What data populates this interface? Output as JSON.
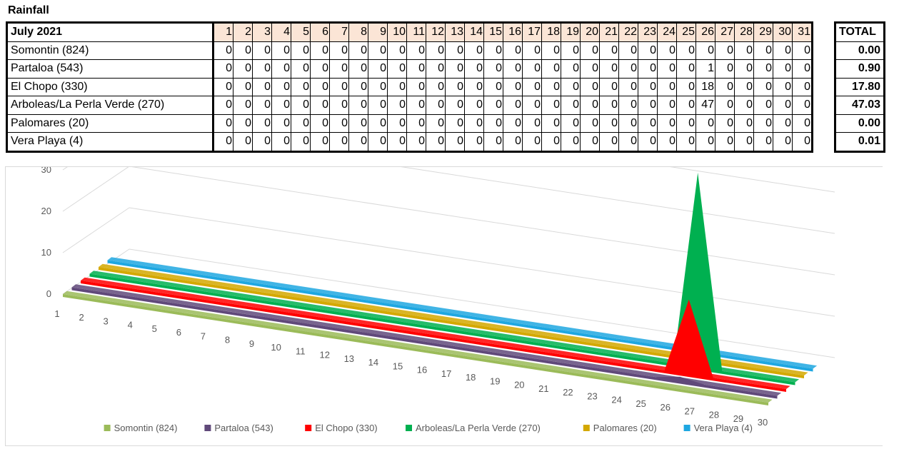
{
  "title": "Rainfall",
  "table": {
    "month_label": "July 2021",
    "days": [
      "1",
      "2",
      "3",
      "4",
      "5",
      "6",
      "7",
      "8",
      "9",
      "10",
      "11",
      "12",
      "13",
      "14",
      "15",
      "16",
      "17",
      "18",
      "19",
      "20",
      "21",
      "22",
      "23",
      "24",
      "25",
      "26",
      "27",
      "28",
      "29",
      "30",
      "31"
    ],
    "total_label": "TOTAL",
    "rows": [
      {
        "name": "Somontin (824)",
        "values": [
          "0",
          "0",
          "0",
          "0",
          "0",
          "0",
          "0",
          "0",
          "0",
          "0",
          "0",
          "0",
          "0",
          "0",
          "0",
          "0",
          "0",
          "0",
          "0",
          "0",
          "0",
          "0",
          "0",
          "0",
          "0",
          "0",
          "0",
          "0",
          "0",
          "0",
          "0"
        ],
        "total": "0.00"
      },
      {
        "name": "Partaloa (543)",
        "values": [
          "0",
          "0",
          "0",
          "0",
          "0",
          "0",
          "0",
          "0",
          "0",
          "0",
          "0",
          "0",
          "0",
          "0",
          "0",
          "0",
          "0",
          "0",
          "0",
          "0",
          "0",
          "0",
          "0",
          "0",
          "0",
          "1",
          "0",
          "0",
          "0",
          "0",
          "0"
        ],
        "total": "0.90"
      },
      {
        "name": "El Chopo (330)",
        "values": [
          "0",
          "0",
          "0",
          "0",
          "0",
          "0",
          "0",
          "0",
          "0",
          "0",
          "0",
          "0",
          "0",
          "0",
          "0",
          "0",
          "0",
          "0",
          "0",
          "0",
          "0",
          "0",
          "0",
          "0",
          "0",
          "18",
          "0",
          "0",
          "0",
          "0",
          "0"
        ],
        "total": "17.80"
      },
      {
        "name": "Arboleas/La Perla Verde (270)",
        "values": [
          "0",
          "0",
          "0",
          "0",
          "0",
          "0",
          "0",
          "0",
          "0",
          "0",
          "0",
          "0",
          "0",
          "0",
          "0",
          "0",
          "0",
          "0",
          "0",
          "0",
          "0",
          "0",
          "0",
          "0",
          "0",
          "47",
          "0",
          "0",
          "0",
          "0",
          "0"
        ],
        "total": "47.03"
      },
      {
        "name": "Palomares (20)",
        "values": [
          "0",
          "0",
          "0",
          "0",
          "0",
          "0",
          "0",
          "0",
          "0",
          "0",
          "0",
          "0",
          "0",
          "0",
          "0",
          "0",
          "0",
          "0",
          "0",
          "0",
          "0",
          "0",
          "0",
          "0",
          "0",
          "0",
          "0",
          "0",
          "0",
          "0",
          "0"
        ],
        "total": "0.00"
      },
      {
        "name": "Vera Playa (4)",
        "values": [
          "0",
          "0",
          "0",
          "0",
          "0",
          "0",
          "0",
          "0",
          "0",
          "0",
          "0",
          "0",
          "0",
          "0",
          "0",
          "0",
          "0",
          "0",
          "0",
          "0",
          "0",
          "0",
          "0",
          "0",
          "0",
          "0",
          "0",
          "0",
          "0",
          "0",
          "0"
        ],
        "total": "0.01"
      }
    ]
  },
  "chart_data": {
    "type": "area",
    "title": "",
    "x": [
      1,
      2,
      3,
      4,
      5,
      6,
      7,
      8,
      9,
      10,
      11,
      12,
      13,
      14,
      15,
      16,
      17,
      18,
      19,
      20,
      21,
      22,
      23,
      24,
      25,
      26,
      27,
      28,
      29,
      30
    ],
    "ylim": [
      0,
      50
    ],
    "yticks": [
      0,
      10,
      20,
      30,
      40,
      50
    ],
    "grid": true,
    "legend_position": "bottom",
    "series": [
      {
        "name": "Somontin (824)",
        "color": "#9bbb59",
        "values": [
          0,
          0,
          0,
          0,
          0,
          0,
          0,
          0,
          0,
          0,
          0,
          0,
          0,
          0,
          0,
          0,
          0,
          0,
          0,
          0,
          0,
          0,
          0,
          0,
          0,
          0,
          0,
          0,
          0,
          0
        ]
      },
      {
        "name": "Partaloa (543)",
        "color": "#60497a",
        "values": [
          0,
          0,
          0,
          0,
          0,
          0,
          0,
          0,
          0,
          0,
          0,
          0,
          0,
          0,
          0,
          0,
          0,
          0,
          0,
          0,
          0,
          0,
          0,
          0,
          0,
          1,
          0,
          0,
          0,
          0
        ]
      },
      {
        "name": "El Chopo (330)",
        "color": "#ff0000",
        "values": [
          0,
          0,
          0,
          0,
          0,
          0,
          0,
          0,
          0,
          0,
          0,
          0,
          0,
          0,
          0,
          0,
          0,
          0,
          0,
          0,
          0,
          0,
          0,
          0,
          0,
          18,
          0,
          0,
          0,
          0
        ]
      },
      {
        "name": "Arboleas/La Perla Verde (270)",
        "color": "#00b050",
        "values": [
          0,
          0,
          0,
          0,
          0,
          0,
          0,
          0,
          0,
          0,
          0,
          0,
          0,
          0,
          0,
          0,
          0,
          0,
          0,
          0,
          0,
          0,
          0,
          0,
          0,
          47,
          0,
          0,
          0,
          0
        ]
      },
      {
        "name": "Palomares (20)",
        "color": "#d4a800",
        "values": [
          0,
          0,
          0,
          0,
          0,
          0,
          0,
          0,
          0,
          0,
          0,
          0,
          0,
          0,
          0,
          0,
          0,
          0,
          0,
          0,
          0,
          0,
          0,
          0,
          0,
          0,
          0,
          0,
          0,
          0
        ]
      },
      {
        "name": "Vera Playa (4)",
        "color": "#1ea7e1",
        "values": [
          0,
          0,
          0,
          0,
          0,
          0,
          0,
          0,
          0,
          0,
          0,
          0,
          0,
          0,
          0,
          0,
          0,
          0,
          0,
          0,
          0,
          0,
          0,
          0,
          0,
          0,
          0,
          0,
          0,
          0
        ]
      }
    ]
  }
}
